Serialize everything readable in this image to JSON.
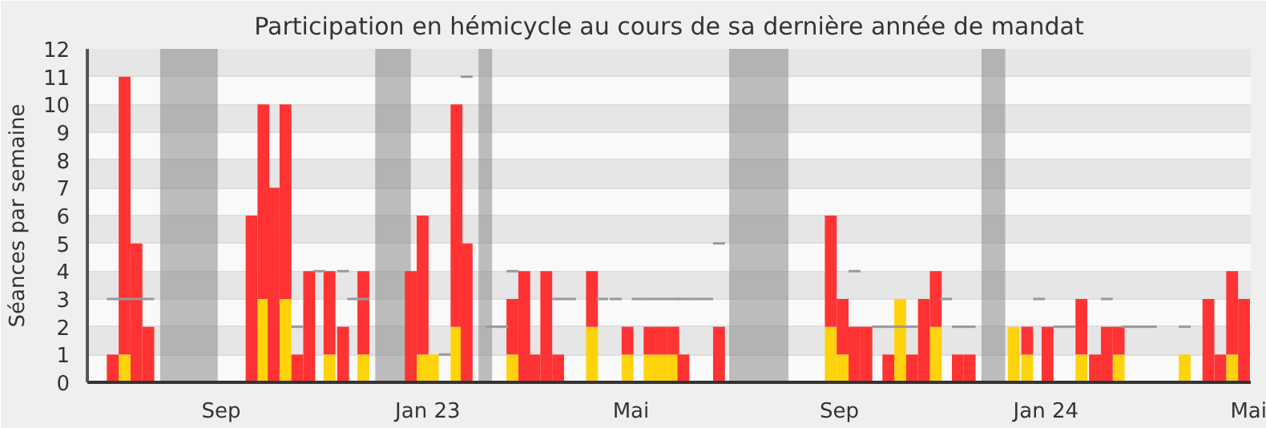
{
  "chart_data": {
    "type": "bar",
    "title": "Participation en hémicycle au cours de sa dernière année de mandat",
    "ylabel": "Séances par semaine",
    "stacked": true,
    "x": [
      "2022-06-29",
      "2022-07-06",
      "2022-07-13",
      "2022-07-20",
      "2022-09-19",
      "2022-09-26",
      "2022-10-02",
      "2022-10-09",
      "2022-10-16",
      "2022-10-23",
      "2022-11-04",
      "2022-11-12",
      "2022-11-24",
      "2022-12-22",
      "2022-12-29",
      "2023-01-04",
      "2023-01-18",
      "2023-01-24",
      "2023-02-20",
      "2023-02-27",
      "2023-03-05",
      "2023-03-12",
      "2023-03-19",
      "2023-04-08",
      "2023-04-29",
      "2023-05-12",
      "2023-05-19",
      "2023-05-26",
      "2023-06-01",
      "2023-06-22",
      "2023-08-27",
      "2023-09-03",
      "2023-09-10",
      "2023-09-17",
      "2023-09-30",
      "2023-10-07",
      "2023-10-14",
      "2023-10-21",
      "2023-10-28",
      "2023-11-10",
      "2023-11-17",
      "2023-12-13",
      "2023-12-21",
      "2024-01-02",
      "2024-01-22",
      "2024-01-30",
      "2024-02-06",
      "2024-02-13",
      "2024-03-23",
      "2024-04-06",
      "2024-04-13",
      "2024-04-20",
      "2024-04-27"
    ],
    "series": [
      {
        "color": "#ffd30b",
        "values": [
          null,
          1,
          null,
          null,
          null,
          3,
          null,
          3,
          null,
          null,
          1,
          null,
          1,
          null,
          1,
          1,
          2,
          null,
          1,
          null,
          null,
          null,
          null,
          2,
          1,
          1,
          1,
          1,
          null,
          null,
          2,
          1,
          null,
          null,
          null,
          3,
          null,
          null,
          2,
          null,
          null,
          2,
          1,
          null,
          1,
          null,
          null,
          1,
          1,
          null,
          null,
          1,
          null
        ]
      },
      {
        "color": "#ff3333",
        "values": [
          1,
          10,
          5,
          2,
          6,
          7,
          7,
          7,
          1,
          4,
          3,
          2,
          3,
          4,
          5,
          null,
          8,
          5,
          2,
          4,
          1,
          4,
          1,
          2,
          1,
          1,
          1,
          1,
          1,
          2,
          4,
          2,
          2,
          2,
          1,
          null,
          1,
          3,
          2,
          1,
          1,
          null,
          1,
          2,
          2,
          1,
          2,
          1,
          null,
          3,
          1,
          3,
          3
        ]
      },
      {
        "type": "step",
        "color": "#999999",
        "x": [
          "2022-06-29",
          "2022-07-06",
          "2022-07-13",
          "2022-07-20",
          "2022-10-16",
          "2022-10-29",
          "2022-11-12",
          "2022-11-18",
          "2022-11-24",
          "2023-01-11",
          "2023-01-24",
          "2023-02-08",
          "2023-02-14",
          "2023-02-20",
          "2023-03-19",
          "2023-03-26",
          "2023-04-14",
          "2023-04-22",
          "2023-05-05",
          "2023-05-12",
          "2023-05-19",
          "2023-05-26",
          "2023-06-01",
          "2023-06-08",
          "2023-06-15",
          "2023-06-22",
          "2023-09-10",
          "2023-09-24",
          "2023-09-30",
          "2023-10-07",
          "2023-10-14",
          "2023-11-03",
          "2023-11-10",
          "2023-11-17",
          "2023-12-28",
          "2024-01-09",
          "2024-01-15",
          "2024-02-06",
          "2024-02-18",
          "2024-02-25",
          "2024-03-03",
          "2024-03-23"
        ],
        "values": [
          3,
          3,
          3,
          3,
          2,
          4,
          4,
          3,
          3,
          1,
          11,
          2,
          2,
          4,
          3,
          3,
          3,
          3,
          3,
          3,
          3,
          3,
          3,
          3,
          3,
          5,
          4,
          2,
          2,
          2,
          2,
          3,
          2,
          2,
          3,
          2,
          2,
          3,
          2,
          2,
          2,
          2
        ]
      }
    ],
    "bands": [
      {
        "axis": "x",
        "from": "2022-07-27",
        "to": "2022-08-30",
        "color": "#808080"
      },
      {
        "axis": "x",
        "from": "2022-12-01",
        "to": "2022-12-22",
        "color": "#808080"
      },
      {
        "axis": "x",
        "from": "2023-01-31",
        "to": "2023-02-08",
        "color": "#808080"
      },
      {
        "axis": "x",
        "from": "2023-06-28",
        "to": "2023-08-02",
        "color": "#808080"
      },
      {
        "axis": "x",
        "from": "2023-11-24",
        "to": "2023-12-08",
        "color": "#808080"
      }
    ],
    "xlim": [
      "2022-06-14",
      "2024-05-01"
    ],
    "xticks": [
      {
        "value": "2022-09-01",
        "label": "Sep"
      },
      {
        "value": "2023-01-01",
        "label": "Jan 23"
      },
      {
        "value": "2023-05-01",
        "label": "Mai"
      },
      {
        "value": "2023-09-01",
        "label": "Sep"
      },
      {
        "value": "2024-01-01",
        "label": "Jan 24"
      },
      {
        "value": "2024-05-01",
        "label": "Mai"
      }
    ],
    "ylim": [
      0,
      12
    ],
    "yticks": [
      0,
      1,
      2,
      3,
      4,
      5,
      6,
      7,
      8,
      9,
      10,
      11,
      12
    ],
    "grid": "y"
  }
}
